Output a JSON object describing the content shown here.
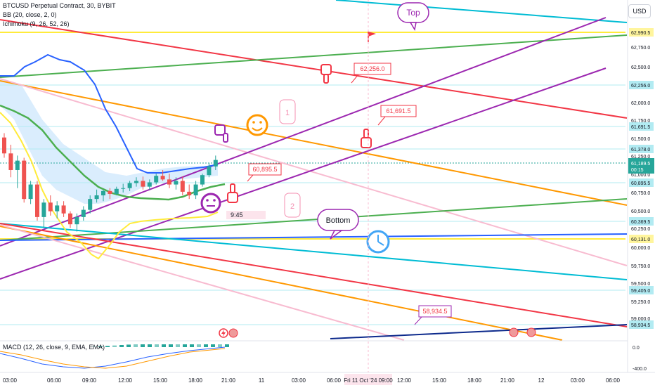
{
  "header": {
    "symbol": "BTCUSD Perpetual Contract, 30, BYBIT",
    "indicator_bb": "BB (20, close, 2, 0)",
    "indicator_ichimoku": "Ichimoku (9, 26, 52, 26)"
  },
  "currency_button": "USD",
  "macd_label": "MACD (12, 26, close, 9, EMA, EMA)",
  "countdown": "9:45",
  "annotations": {
    "top": "Top",
    "bottom": "Bottom",
    "one": "1",
    "two": "2"
  },
  "callouts": [
    "62,256.0",
    "61,691.5",
    "60,895.5",
    "58,934.5"
  ],
  "price_axis": {
    "ticks": [
      "62,750.0",
      "62,500.0",
      "62,000.0",
      "61,750.0",
      "61,500.0",
      "61,250.0",
      "61,000.0",
      "60,750.0",
      "60,500.0",
      "60,250.0",
      "60,000.0",
      "59,750.0",
      "59,500.0",
      "59,250.0",
      "59,000.0"
    ],
    "tagged_levels": [
      {
        "label": "62,990.5",
        "color": "#fff59d"
      },
      {
        "label": "62,256.0",
        "color": "#b2ebf2"
      },
      {
        "label": "61,691.5",
        "color": "#b2ebf2"
      },
      {
        "label": "61,378.0",
        "color": "#b2ebf2"
      },
      {
        "label": "60,895.5",
        "color": "#b2ebf2"
      },
      {
        "label": "60,369.5",
        "color": "#b2ebf2"
      },
      {
        "label": "60,131.0",
        "color": "#fff59d"
      },
      {
        "label": "59,405.0",
        "color": "#b2ebf2"
      },
      {
        "label": "58,934.5",
        "color": "#b2ebf2"
      }
    ],
    "current_price": "61,189.5",
    "current_time": "00:15",
    "macd_ticks": [
      "0.0",
      "-400.0"
    ]
  },
  "time_axis": {
    "labels": [
      "03:00",
      "06:00",
      "09:00",
      "12:00",
      "15:00",
      "18:00",
      "21:00",
      "11",
      "03:00",
      "06:00",
      "12:00",
      "15:00",
      "18:00",
      "21:00",
      "12",
      "03:00",
      "06:00"
    ],
    "highlight": "Fri 11 Oct '24  09:00"
  },
  "colors": {
    "up": "#26a69a",
    "down": "#ef5350",
    "purple": "#9c27b0",
    "red": "#f23645",
    "orange": "#ff9800",
    "green": "#4caf50",
    "cyan": "#00bcd4",
    "pink": "#f8bbd0",
    "blue": "#2962ff",
    "yellow": "#ffeb3b",
    "navy": "#0d2a8c"
  },
  "chart_data": {
    "type": "candlestick",
    "symbol": "BTCUSD Perpetual Contract",
    "interval": "30",
    "exchange": "BYBIT",
    "current_price": 61189.5,
    "levels": [
      62990.5,
      62256.0,
      61691.5,
      61378.0,
      60895.5,
      60369.5,
      60131.0,
      59405.0,
      58934.5
    ],
    "candles": [
      {
        "o": 61500,
        "h": 61560,
        "l": 61220,
        "c": 61280
      },
      {
        "o": 61280,
        "h": 61400,
        "l": 60950,
        "c": 61050
      },
      {
        "o": 61050,
        "h": 61250,
        "l": 60800,
        "c": 61180
      },
      {
        "o": 61180,
        "h": 61220,
        "l": 60600,
        "c": 60650
      },
      {
        "o": 60650,
        "h": 60900,
        "l": 60580,
        "c": 60850
      },
      {
        "o": 60850,
        "h": 60900,
        "l": 60350,
        "c": 60400
      },
      {
        "o": 60400,
        "h": 60650,
        "l": 60250,
        "c": 60600
      },
      {
        "o": 60600,
        "h": 60700,
        "l": 60420,
        "c": 60480
      },
      {
        "o": 60480,
        "h": 60620,
        "l": 60380,
        "c": 60560
      },
      {
        "o": 60560,
        "h": 60620,
        "l": 60400,
        "c": 60450
      },
      {
        "o": 60450,
        "h": 60480,
        "l": 60250,
        "c": 60300
      },
      {
        "o": 60300,
        "h": 60450,
        "l": 60200,
        "c": 60400
      },
      {
        "o": 60400,
        "h": 60550,
        "l": 60350,
        "c": 60500
      },
      {
        "o": 60500,
        "h": 60700,
        "l": 60450,
        "c": 60650
      },
      {
        "o": 60650,
        "h": 60780,
        "l": 60600,
        "c": 60700
      },
      {
        "o": 60700,
        "h": 60780,
        "l": 60620,
        "c": 60760
      },
      {
        "o": 60760,
        "h": 60800,
        "l": 60650,
        "c": 60720
      },
      {
        "o": 60720,
        "h": 60820,
        "l": 60700,
        "c": 60790
      },
      {
        "o": 60790,
        "h": 60860,
        "l": 60740,
        "c": 60800
      },
      {
        "o": 60800,
        "h": 60900,
        "l": 60760,
        "c": 60870
      },
      {
        "o": 60870,
        "h": 60950,
        "l": 60820,
        "c": 60900
      },
      {
        "o": 60900,
        "h": 60960,
        "l": 60780,
        "c": 60820
      },
      {
        "o": 60820,
        "h": 60920,
        "l": 60780,
        "c": 60880
      },
      {
        "o": 60880,
        "h": 61000,
        "l": 60850,
        "c": 60970
      },
      {
        "o": 60970,
        "h": 61050,
        "l": 60900,
        "c": 60920
      },
      {
        "o": 60920,
        "h": 61000,
        "l": 60800,
        "c": 60850
      },
      {
        "o": 60850,
        "h": 60950,
        "l": 60780,
        "c": 60900
      },
      {
        "o": 60900,
        "h": 60960,
        "l": 60700,
        "c": 60750
      },
      {
        "o": 60750,
        "h": 60850,
        "l": 60650,
        "c": 60700
      },
      {
        "o": 60700,
        "h": 60900,
        "l": 60650,
        "c": 60850
      },
      {
        "o": 60850,
        "h": 61000,
        "l": 60820,
        "c": 60980
      },
      {
        "o": 60980,
        "h": 61150,
        "l": 60950,
        "c": 61100
      },
      {
        "o": 61100,
        "h": 61250,
        "l": 61050,
        "c": 61189.5
      }
    ]
  }
}
